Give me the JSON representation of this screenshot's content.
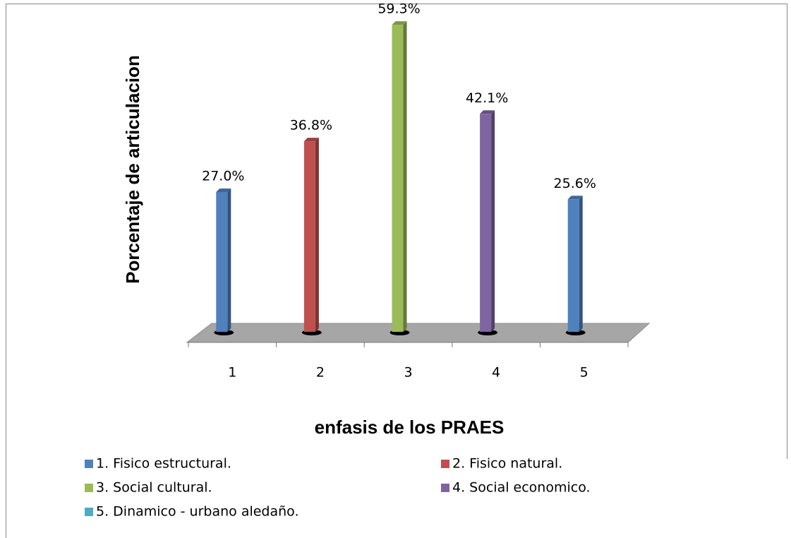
{
  "chart_data": {
    "type": "bar",
    "y_label": "Porcentaje de articulacion",
    "x_label": "enfasis de los PRAES",
    "categories": [
      "1",
      "2",
      "3",
      "4",
      "5"
    ],
    "ylim": [
      0,
      60
    ],
    "series": [
      {
        "name": "1. Fisico estructural.",
        "color": "#4f81bd",
        "values": [
          27.0,
          null,
          null,
          null,
          null
        ],
        "value_labels": [
          "27.0%",
          null,
          null,
          null,
          null
        ]
      },
      {
        "name": "2. Fisico natural.",
        "color": "#c0504d",
        "values": [
          null,
          36.8,
          null,
          null,
          null
        ],
        "value_labels": [
          null,
          "36.8%",
          null,
          null,
          null
        ]
      },
      {
        "name": "3. Social cultural.",
        "color": "#9bbb59",
        "values": [
          null,
          null,
          59.3,
          null,
          null
        ],
        "value_labels": [
          null,
          null,
          "59.3%",
          null,
          null
        ]
      },
      {
        "name": "4. Social economico.",
        "color": "#8064a2",
        "values": [
          null,
          null,
          null,
          42.1,
          null
        ],
        "value_labels": [
          null,
          null,
          null,
          "42.1%",
          null
        ]
      },
      {
        "name": "5. Dinamico - urbano aledaño.",
        "color": "#4bacc6",
        "bar_color": "#4f81bd",
        "values": [
          null,
          null,
          null,
          null,
          25.6
        ],
        "value_labels": [
          null,
          null,
          null,
          null,
          "25.6%"
        ]
      }
    ]
  }
}
